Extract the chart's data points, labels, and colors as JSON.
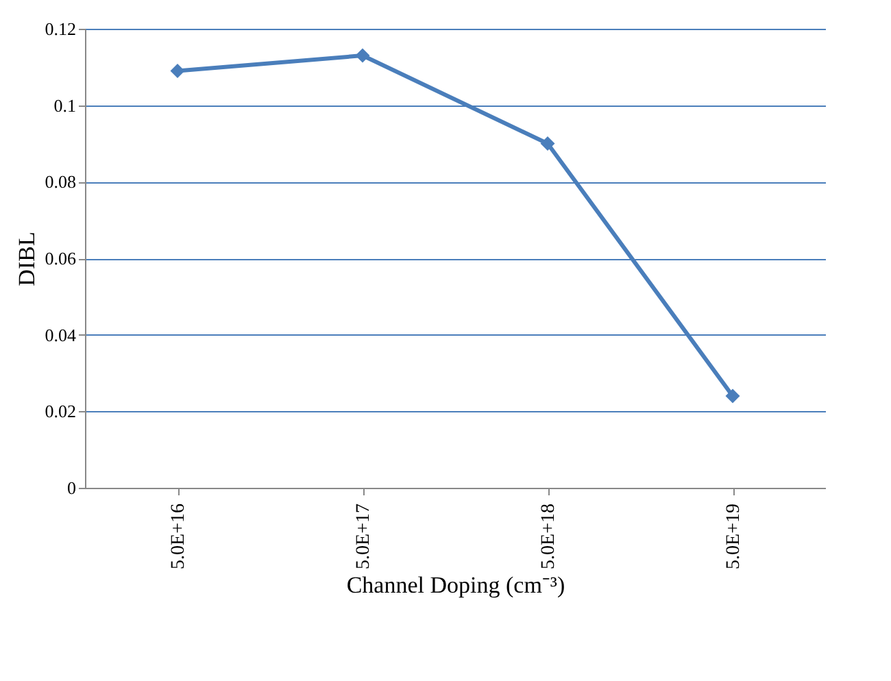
{
  "chart_data": {
    "type": "line",
    "xlabel": "Channel Doping (cm⁻³)",
    "ylabel": "DIBL",
    "categories": [
      "5.0E+16",
      "5.0E+17",
      "5.0E+18",
      "5.0E+19"
    ],
    "series": [
      {
        "color": "#4a7ebb",
        "values": [
          0.109,
          0.113,
          0.09,
          0.024
        ]
      }
    ],
    "ylim": [
      0,
      0.12
    ],
    "yticks": [
      0,
      0.02,
      0.04,
      0.06,
      0.08,
      0.1,
      0.12
    ],
    "grid": "y",
    "marker": "diamond",
    "line_style": "solid"
  }
}
